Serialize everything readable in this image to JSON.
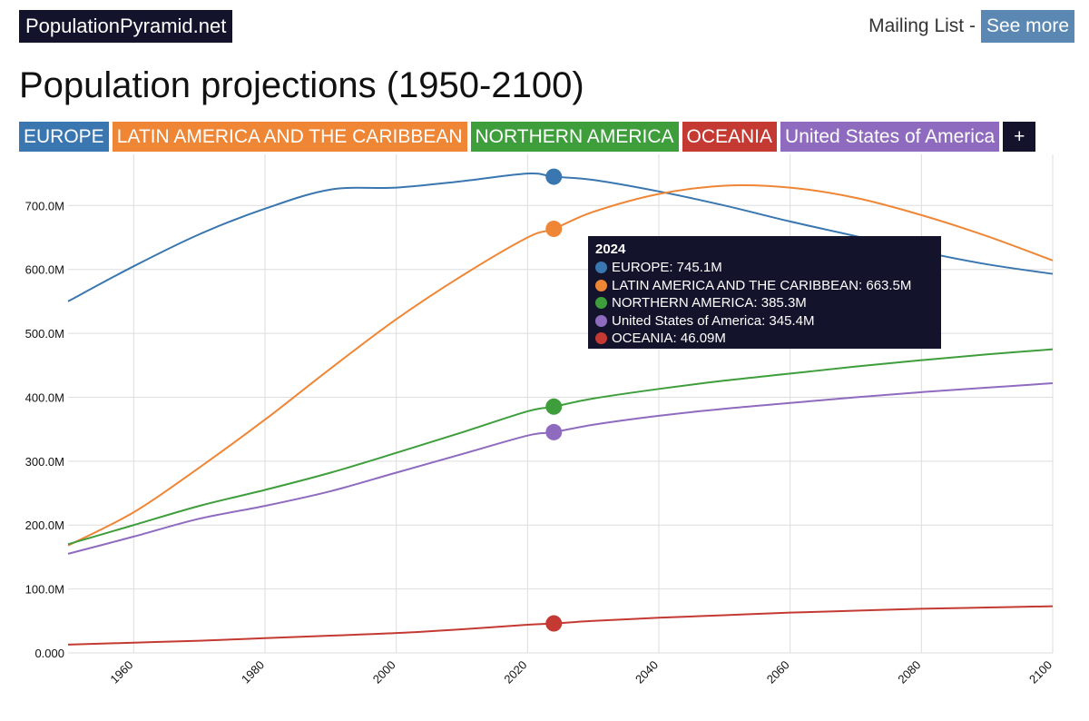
{
  "header": {
    "brand": "PopulationPyramid.net",
    "mailing_label": "Mailing List -",
    "see_more": "See more"
  },
  "page_title": "Population projections (1950-2100)",
  "tags": [
    {
      "label": "EUROPE",
      "color": "#3a76af"
    },
    {
      "label": "LATIN AMERICA AND THE CARIBBEAN",
      "color": "#ef8636"
    },
    {
      "label": "NORTHERN AMERICA",
      "color": "#3f9e3c"
    },
    {
      "label": "OCEANIA",
      "color": "#c43a32"
    },
    {
      "label": "United States of America",
      "color": "#8f6bbf"
    }
  ],
  "add_label": "+",
  "tooltip": {
    "year": "2024",
    "rows": [
      {
        "text": "EUROPE: 745.1M",
        "color": "#3a76af"
      },
      {
        "text": "LATIN AMERICA AND THE CARIBBEAN: 663.5M",
        "color": "#ef8636"
      },
      {
        "text": "NORTHERN AMERICA: 385.3M",
        "color": "#3f9e3c"
      },
      {
        "text": "United States of America: 345.4M",
        "color": "#8f6bbf"
      },
      {
        "text": "OCEANIA: 46.09M",
        "color": "#c43a32"
      }
    ]
  },
  "chart_data": {
    "type": "line",
    "title": "Population projections (1950-2100)",
    "xlabel": "",
    "ylabel": "",
    "xlim": [
      1950,
      2100
    ],
    "ylim": [
      0,
      780
    ],
    "x_ticks": [
      1960,
      1980,
      2000,
      2020,
      2040,
      2060,
      2080,
      2100
    ],
    "y_ticks": [
      0,
      100,
      200,
      300,
      400,
      500,
      600,
      700
    ],
    "y_tick_labels": [
      "0.000",
      "100.0M",
      "200.0M",
      "300.0M",
      "400.0M",
      "500.0M",
      "600.0M",
      "700.0M"
    ],
    "highlight_x": 2024,
    "x": [
      1950,
      1960,
      1970,
      1980,
      1990,
      2000,
      2010,
      2020,
      2024,
      2030,
      2040,
      2050,
      2060,
      2070,
      2080,
      2090,
      2100
    ],
    "series": [
      {
        "name": "EUROPE",
        "color": "#3a76af",
        "values": [
          550,
          605,
          655,
          695,
          725,
          728,
          738,
          750,
          745.1,
          740,
          722,
          700,
          675,
          652,
          628,
          608,
          593
        ]
      },
      {
        "name": "LATIN AMERICA AND THE CARIBBEAN",
        "color": "#ef8636",
        "values": [
          168,
          220,
          290,
          365,
          445,
          522,
          590,
          650,
          663.5,
          690,
          718,
          731,
          728,
          712,
          685,
          652,
          614
        ]
      },
      {
        "name": "NORTHERN AMERICA",
        "color": "#3f9e3c",
        "values": [
          170,
          200,
          230,
          255,
          282,
          313,
          345,
          378,
          385.3,
          398,
          413,
          426,
          437,
          448,
          458,
          467,
          475
        ]
      },
      {
        "name": "United States of America",
        "color": "#8f6bbf",
        "values": [
          155,
          182,
          210,
          230,
          253,
          282,
          311,
          340,
          345.4,
          357,
          371,
          382,
          391,
          400,
          408,
          415,
          422
        ]
      },
      {
        "name": "OCEANIA",
        "color": "#c43a32",
        "values": [
          13,
          16,
          19,
          23,
          27,
          31,
          37,
          44,
          46.09,
          50,
          55,
          59,
          63,
          66,
          69,
          71,
          73
        ]
      }
    ]
  }
}
